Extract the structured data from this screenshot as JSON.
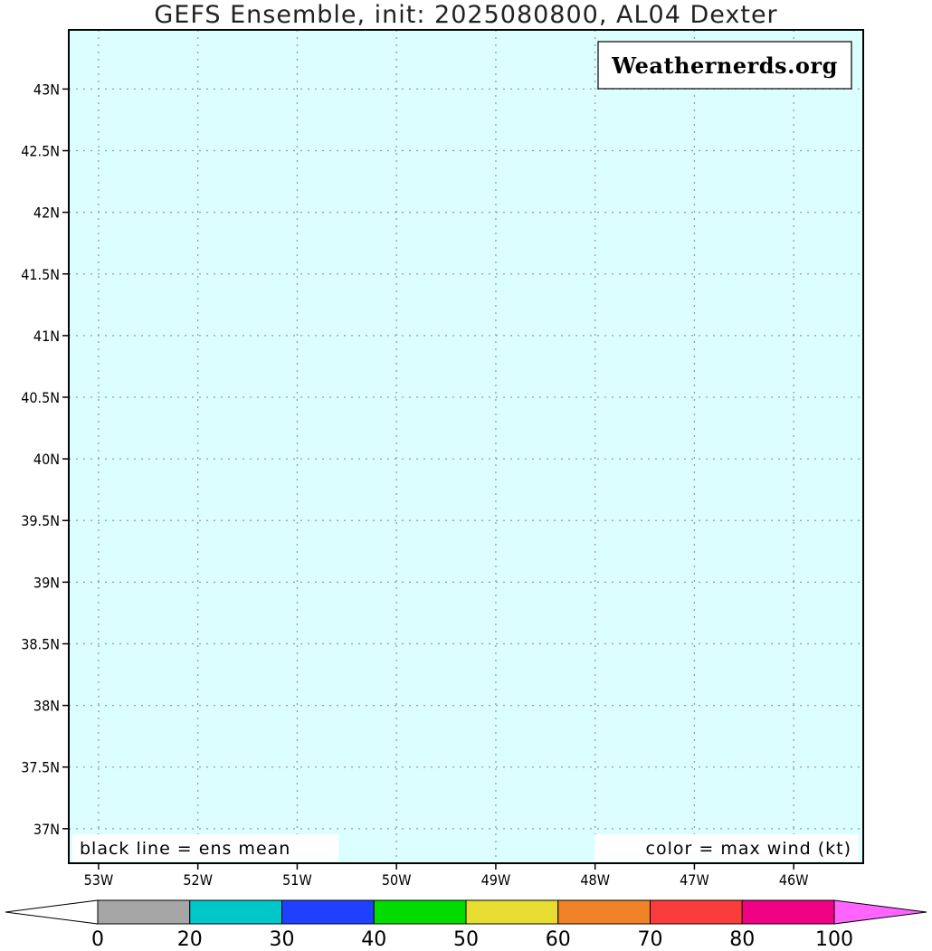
{
  "title": "GEFS Ensemble, init: 2025080800, AL04 Dexter",
  "watermark": "Weathernerds.org",
  "notes": {
    "left": "black line = ens mean",
    "right": "color = max wind (kt)"
  },
  "chart_data": {
    "type": "map",
    "title": "GEFS Ensemble, init: 2025080800, AL04 Dexter",
    "x_axis": {
      "label": "",
      "ticks": [
        "53W",
        "52W",
        "51W",
        "50W",
        "49W",
        "48W",
        "47W",
        "46W"
      ],
      "tick_values": [
        -53,
        -52,
        -51,
        -50,
        -49,
        -48,
        -47,
        -46
      ],
      "range": [
        -53.3,
        -45.3
      ]
    },
    "y_axis": {
      "label": "",
      "ticks": [
        "37N",
        "37.5N",
        "38N",
        "38.5N",
        "39N",
        "39.5N",
        "40N",
        "40.5N",
        "41N",
        "41.5N",
        "42N",
        "42.5N",
        "43N"
      ],
      "tick_values": [
        37,
        37.5,
        38,
        38.5,
        39,
        39.5,
        40,
        40.5,
        41,
        41.5,
        42,
        42.5,
        43
      ],
      "range": [
        36.72,
        43.48
      ]
    },
    "grid": true,
    "background_color": "#dbfffe",
    "series": [],
    "colorbar": {
      "unit": "kt",
      "labels": [
        "0",
        "20",
        "30",
        "40",
        "50",
        "60",
        "70",
        "80",
        "100"
      ],
      "bins": [
        {
          "from": 0,
          "to": 20,
          "color": "#a6a6a6"
        },
        {
          "from": 20,
          "to": 30,
          "color": "#00c8c8"
        },
        {
          "from": 30,
          "to": 40,
          "color": "#2040ff"
        },
        {
          "from": 40,
          "to": 50,
          "color": "#00dc00"
        },
        {
          "from": 50,
          "to": 60,
          "color": "#e6dc32"
        },
        {
          "from": 60,
          "to": 70,
          "color": "#f08228"
        },
        {
          "from": 70,
          "to": 80,
          "color": "#fa3c3c"
        },
        {
          "from": 80,
          "to": 100,
          "color": "#f00082"
        }
      ],
      "below_color": "#ffffff",
      "above_color": "#ff64ff"
    }
  }
}
